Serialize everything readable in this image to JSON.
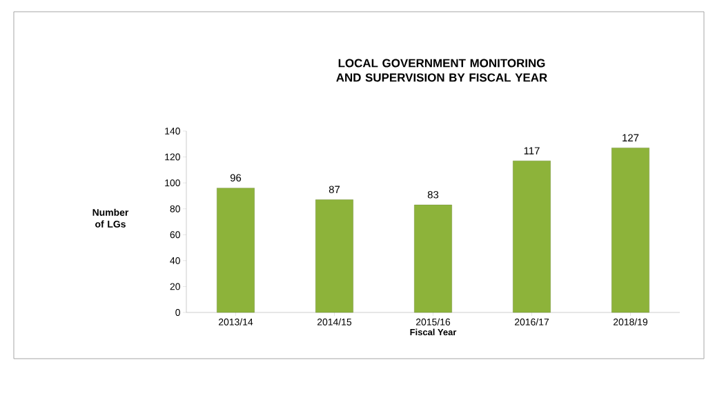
{
  "chart_data": {
    "type": "bar",
    "title": "LOCAL GOVERNMENT MONITORING AND SUPERVISION BY FISCAL YEAR",
    "xlabel": "Fiscal Year",
    "ylabel": "Number of LGs",
    "categories": [
      "2013/14",
      "2014/15",
      "2015/16",
      "2016/17",
      "2018/19"
    ],
    "values": [
      96,
      87,
      83,
      117,
      127
    ],
    "color": "#8db33a",
    "ylim": [
      0,
      140
    ],
    "yticks": [
      0,
      20,
      40,
      60,
      80,
      100,
      120,
      140
    ],
    "grid": false,
    "data_labels": true
  }
}
